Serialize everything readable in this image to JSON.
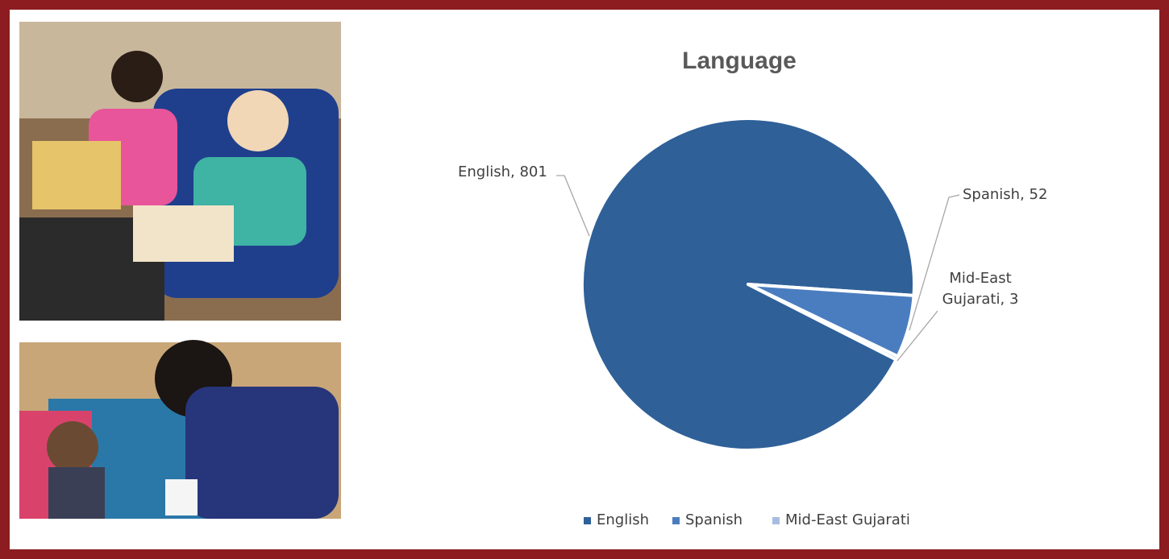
{
  "chart_data": {
    "type": "pie",
    "title": "Language",
    "categories": [
      "English",
      "Spanish",
      "Mid-East Gujarati"
    ],
    "values": [
      801,
      52,
      3
    ],
    "colors": [
      "#2f6098",
      "#4a7dc0",
      "#a7bce0"
    ],
    "legend": "bottom"
  }
}
